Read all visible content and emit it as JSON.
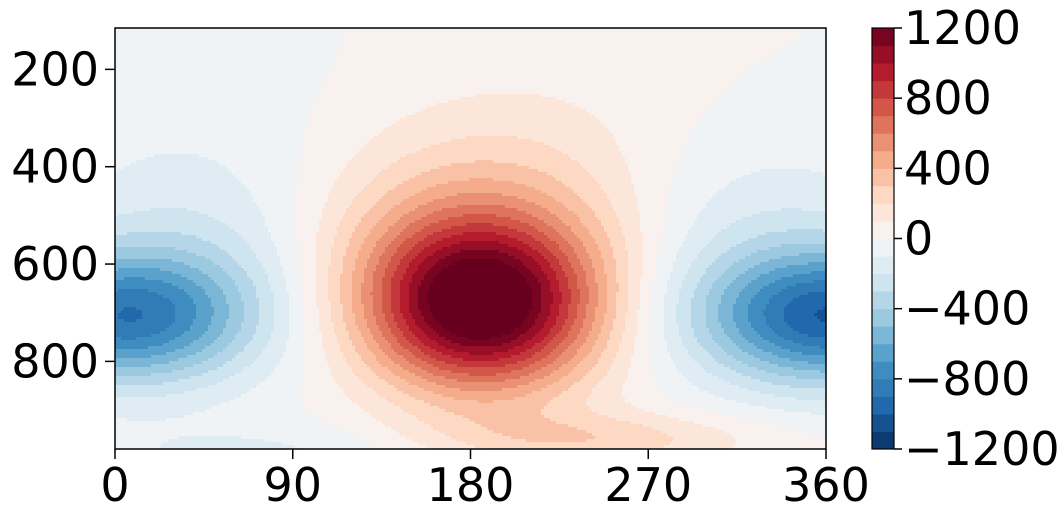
{
  "chart_data": {
    "type": "heatmap",
    "plot_type": "filled-contour",
    "colormap": "RdBu_r",
    "title": "",
    "xlabel": "",
    "ylabel": "",
    "xlim": [
      0,
      360
    ],
    "ylim": [
      115,
      980
    ],
    "y_inverted": true,
    "x_ticks": [
      "0",
      "90",
      "180",
      "270",
      "360"
    ],
    "x_tick_values": [
      0,
      90,
      180,
      270,
      360
    ],
    "y_ticks": [
      "200",
      "400",
      "600",
      "800"
    ],
    "y_tick_values": [
      200,
      400,
      600,
      800
    ],
    "colorbar": {
      "vmin": -1200,
      "vmax": 1200,
      "level_step": 100,
      "tick_labels": [
        "1200",
        "800",
        "400",
        "0",
        "−400",
        "−800",
        "−1200"
      ],
      "tick_values": [
        1200,
        800,
        400,
        0,
        -400,
        -800,
        -1200
      ]
    },
    "features": [
      {
        "name": "positive-anomaly-max",
        "x": 182,
        "y": 680,
        "value": 1150
      },
      {
        "name": "negative-anomaly-west",
        "x": 20,
        "y": 710,
        "value": -850
      },
      {
        "name": "negative-anomaly-east",
        "x": 355,
        "y": 700,
        "value": -900
      },
      {
        "name": "weak-positive-lower",
        "x": 230,
        "y": 950,
        "value": 250
      }
    ],
    "grid": false,
    "legend": "colorbar-right"
  }
}
